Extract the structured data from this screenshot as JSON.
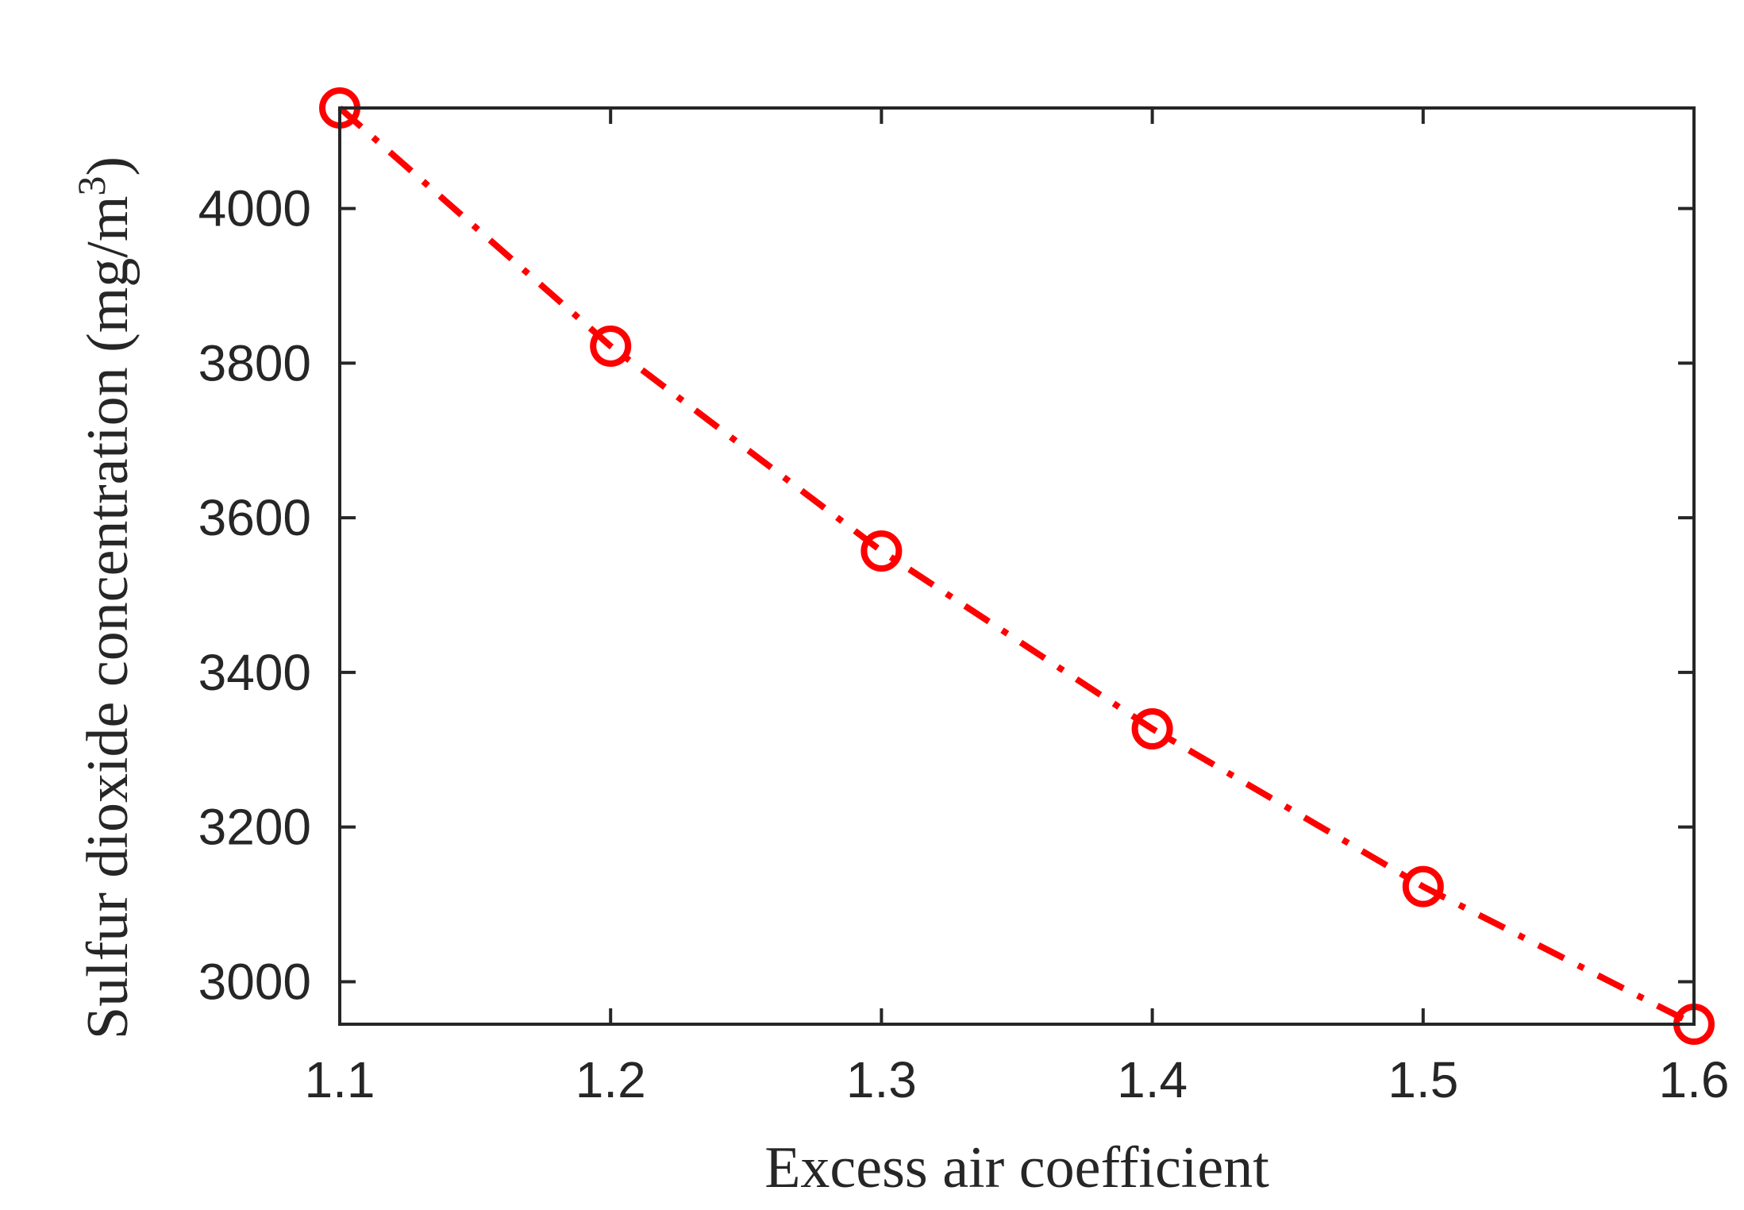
{
  "chart_data": {
    "type": "line",
    "xlabel": "Excess air coefficient",
    "ylabel": "Sulfur dioxide concentration (mg/m",
    "ylabel_superscript": "3",
    "ylabel_suffix": ")",
    "xlim": [
      1.1,
      1.6
    ],
    "ylim": [
      2945,
      4130
    ],
    "xticks": [
      1.1,
      1.2,
      1.3,
      1.4,
      1.5,
      1.6
    ],
    "xtick_labels": [
      "1.1",
      "1.2",
      "1.3",
      "1.4",
      "1.5",
      "1.6"
    ],
    "yticks": [
      3000,
      3200,
      3400,
      3600,
      3800,
      4000
    ],
    "ytick_labels": [
      "3000",
      "3200",
      "3400",
      "3600",
      "3800",
      "4000"
    ],
    "grid": false,
    "legend": "none",
    "series": [
      {
        "x": [
          1.1,
          1.2,
          1.3,
          1.4,
          1.5,
          1.6
        ],
        "values": [
          4130,
          3822,
          3557,
          3327,
          3123,
          2945
        ],
        "color": "#ff0000",
        "line_style": "dash-dot",
        "marker": "circle-open"
      }
    ]
  }
}
